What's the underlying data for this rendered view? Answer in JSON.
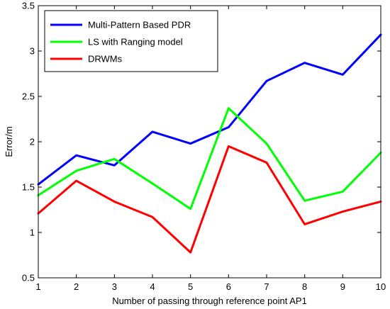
{
  "chart_data": {
    "type": "line",
    "title": "",
    "xlabel": "Number of passing through reference point AP1",
    "ylabel": "Error/m",
    "x": [
      1,
      2,
      3,
      4,
      5,
      6,
      7,
      8,
      9,
      10
    ],
    "xlim": [
      1,
      10
    ],
    "ylim": [
      0.5,
      3.5
    ],
    "xticks": [
      "1",
      "2",
      "3",
      "4",
      "5",
      "6",
      "7",
      "8",
      "9",
      "10"
    ],
    "yticks": [
      "0.5",
      "1",
      "1.5",
      "2",
      "2.5",
      "3",
      "3.5"
    ],
    "grid": false,
    "legend_position": "top-left",
    "series": [
      {
        "name": "Multi-Pattern Based PDR",
        "color": "#0000ff",
        "values": [
          1.53,
          1.85,
          1.74,
          2.11,
          1.98,
          2.16,
          2.67,
          2.87,
          2.74,
          3.18
        ]
      },
      {
        "name": "LS with Ranging model",
        "color": "#00ff00",
        "values": [
          1.41,
          1.68,
          1.81,
          1.54,
          1.26,
          2.37,
          1.98,
          1.35,
          1.45,
          1.88
        ]
      },
      {
        "name": "DRWMs",
        "color": "#ff0000",
        "values": [
          1.21,
          1.57,
          1.34,
          1.17,
          0.78,
          1.95,
          1.77,
          1.09,
          1.23,
          1.34
        ]
      }
    ]
  }
}
